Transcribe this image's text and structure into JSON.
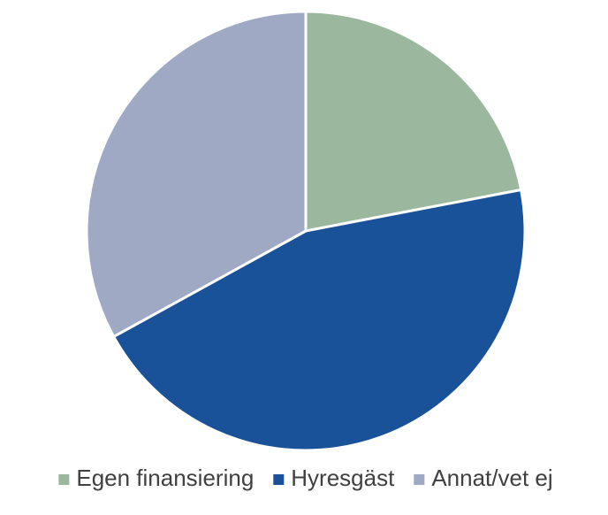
{
  "chart_data": {
    "type": "pie",
    "categories": [
      "Egen finansiering",
      "Hyresgäst",
      "Annat/vet ej"
    ],
    "values": [
      22,
      45,
      33
    ],
    "colors": [
      "#9bb89e",
      "#1a5299",
      "#a0a9c3"
    ],
    "legend": "bottom"
  }
}
